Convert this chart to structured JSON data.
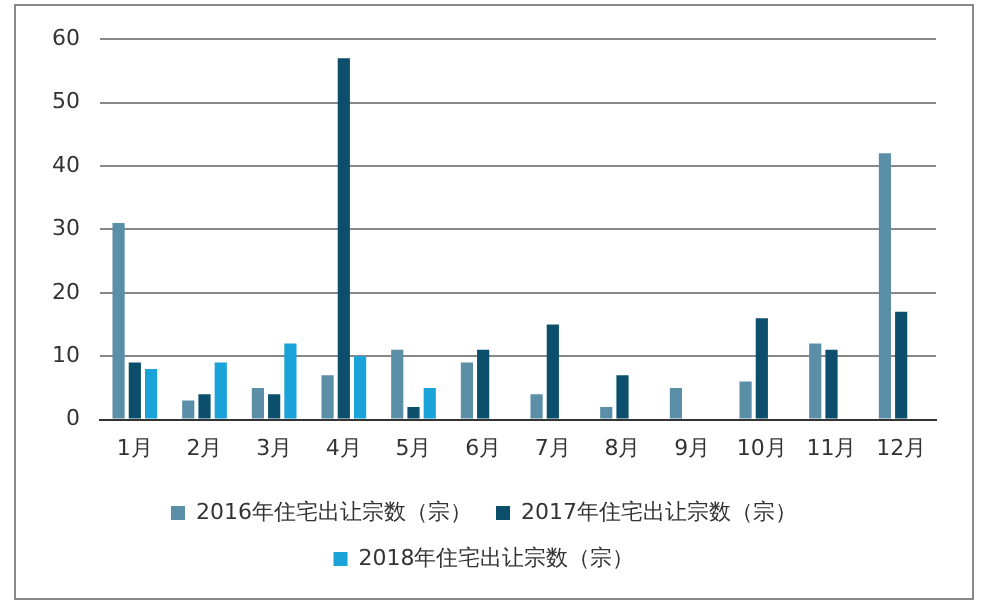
{
  "chart_data": {
    "type": "bar",
    "categories": [
      "1月",
      "2月",
      "3月",
      "4月",
      "5月",
      "6月",
      "7月",
      "8月",
      "9月",
      "10月",
      "11月",
      "12月"
    ],
    "series": [
      {
        "name": "2016年住宅出让宗数（宗）",
        "color": "#5b8fa8",
        "values": [
          31,
          3,
          5,
          7,
          11,
          9,
          4,
          2,
          5,
          6,
          12,
          42
        ]
      },
      {
        "name": "2017年住宅出让宗数（宗）",
        "color": "#0b4f6c",
        "values": [
          9,
          4,
          4,
          57,
          2,
          11,
          15,
          7,
          0,
          16,
          11,
          17
        ]
      },
      {
        "name": "2018年住宅出让宗数（宗）",
        "color": "#1aa3d9",
        "values": [
          8,
          9,
          12,
          10,
          5,
          0,
          0,
          0,
          0,
          0,
          0,
          0
        ]
      }
    ],
    "ylim": [
      0,
      60
    ],
    "yticks": [
      0,
      10,
      20,
      30,
      40,
      50,
      60
    ],
    "grid": "y",
    "legend": "bottom"
  }
}
